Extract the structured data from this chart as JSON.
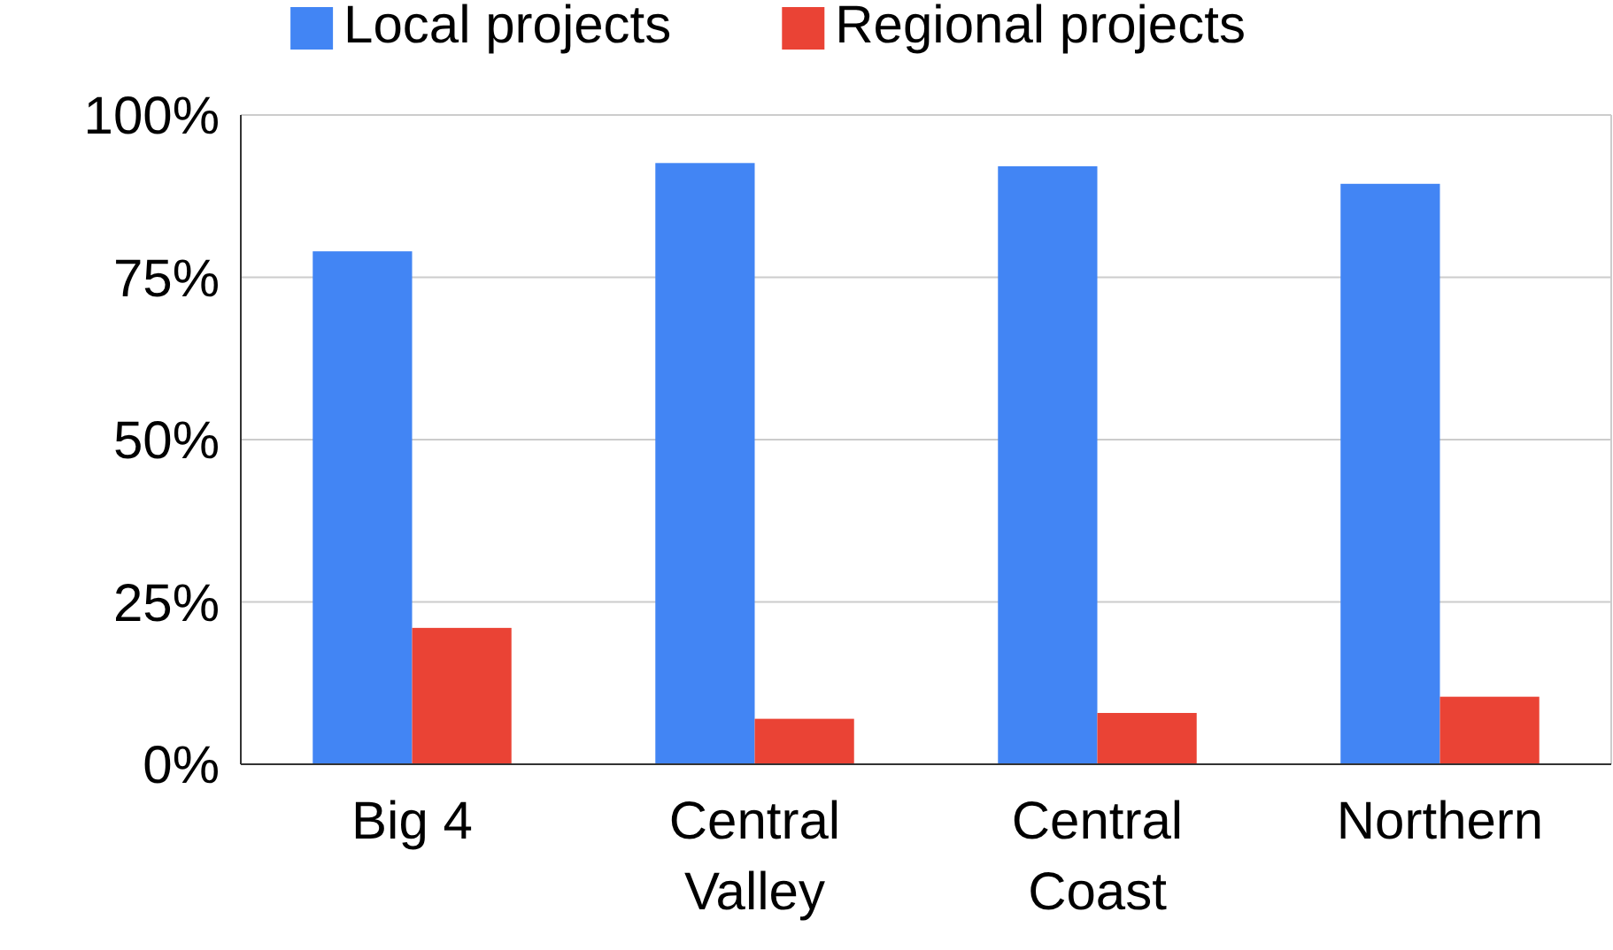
{
  "chart_data": {
    "type": "bar",
    "categories": [
      "Big 4",
      "Central Valley",
      "Central Coast",
      "Northern"
    ],
    "series": [
      {
        "name": "Local projects",
        "color": "#4285f4",
        "values": [
          79,
          92.6,
          92.1,
          89.4
        ]
      },
      {
        "name": "Regional projects",
        "color": "#ea4335",
        "values": [
          21,
          7,
          7.9,
          10.4
        ]
      }
    ],
    "ylim": [
      0,
      100
    ],
    "yticks": [
      {
        "value": 0,
        "label": "0%"
      },
      {
        "value": 25,
        "label": "25%"
      },
      {
        "value": 50,
        "label": "50%"
      },
      {
        "value": 75,
        "label": "75%"
      },
      {
        "value": 100,
        "label": "100%"
      }
    ],
    "grid": "y",
    "legend": "top"
  }
}
